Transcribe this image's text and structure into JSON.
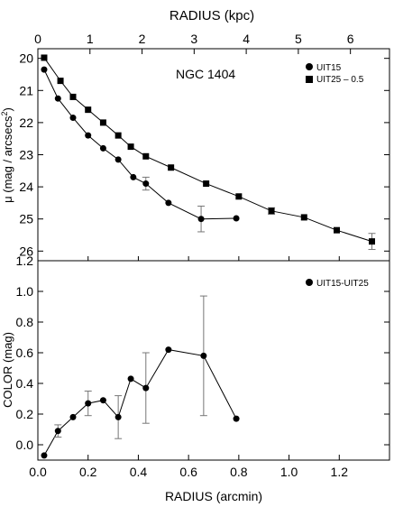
{
  "chart_data": [
    {
      "type": "line",
      "title": "NGC 1404",
      "top_axis": {
        "label": "RADIUS (kpc)",
        "range": [
          0,
          6.75
        ],
        "ticks": [
          0,
          1,
          2,
          3,
          4,
          5,
          6
        ],
        "tick_labels": [
          "0",
          "1",
          "2",
          "3",
          "4",
          "5",
          "6"
        ]
      },
      "xlim": [
        0,
        1.4
      ],
      "ylabel": "μ (mag / arcsecs",
      "ylabel_sup": "2",
      "ylabel_close": ")",
      "ylim": [
        26.3,
        19.7
      ],
      "y_inverted": true,
      "yticks": [
        20,
        21,
        22,
        23,
        24,
        25,
        26
      ],
      "ytick_labels": [
        "20",
        "21",
        "22",
        "23",
        "24",
        "25",
        "26"
      ],
      "legend_position": "top-right",
      "series": [
        {
          "name": "UIT15",
          "marker": "circle",
          "x": [
            0.025,
            0.08,
            0.14,
            0.2,
            0.26,
            0.32,
            0.38,
            0.43,
            0.52,
            0.65,
            0.79
          ],
          "y": [
            20.35,
            21.25,
            21.85,
            22.4,
            22.8,
            23.15,
            23.7,
            23.9,
            24.5,
            25.0,
            24.98
          ],
          "err": [
            0,
            0,
            0,
            0,
            0,
            0,
            0,
            0.2,
            0,
            0.4,
            0
          ]
        },
        {
          "name": "UIT25 – 0.5",
          "marker": "square",
          "x": [
            0.025,
            0.09,
            0.14,
            0.2,
            0.26,
            0.32,
            0.37,
            0.43,
            0.53,
            0.67,
            0.8,
            0.93,
            1.06,
            1.19,
            1.33
          ],
          "y": [
            19.98,
            20.7,
            21.2,
            21.6,
            22.0,
            22.4,
            22.75,
            23.05,
            23.4,
            23.9,
            24.3,
            24.75,
            24.95,
            25.35,
            25.7
          ],
          "err": [
            0,
            0,
            0,
            0,
            0,
            0,
            0,
            0,
            0,
            0,
            0,
            0.1,
            0,
            0,
            0.25
          ]
        }
      ]
    },
    {
      "type": "line",
      "xlabel": "RADIUS (arcmin)",
      "ylabel": "COLOR (mag)",
      "xlim": [
        0,
        1.4
      ],
      "xticks": [
        0.0,
        0.2,
        0.4,
        0.6,
        0.8,
        1.0,
        1.2
      ],
      "xtick_labels": [
        "0.0",
        "0.2",
        "0.4",
        "0.6",
        "0.8",
        "1.0",
        "1.2"
      ],
      "ylim": [
        -0.1,
        1.2
      ],
      "yticks": [
        0.0,
        0.2,
        0.4,
        0.6,
        0.8,
        1.0,
        1.2
      ],
      "ytick_labels": [
        "0.0",
        "0.2",
        "0.4",
        "0.6",
        "0.8",
        "1.0",
        "1.2"
      ],
      "legend_position": "top-right",
      "series": [
        {
          "name": "UIT15-UIT25",
          "marker": "circle",
          "x": [
            0.025,
            0.08,
            0.14,
            0.2,
            0.26,
            0.32,
            0.37,
            0.43,
            0.52,
            0.66,
            0.79
          ],
          "y": [
            -0.07,
            0.09,
            0.18,
            0.27,
            0.29,
            0.18,
            0.43,
            0.37,
            0.62,
            0.58,
            0.17
          ],
          "err": [
            0,
            0.04,
            0,
            0.08,
            0,
            0.14,
            0,
            0.23,
            0,
            0.39,
            0
          ]
        }
      ]
    }
  ]
}
